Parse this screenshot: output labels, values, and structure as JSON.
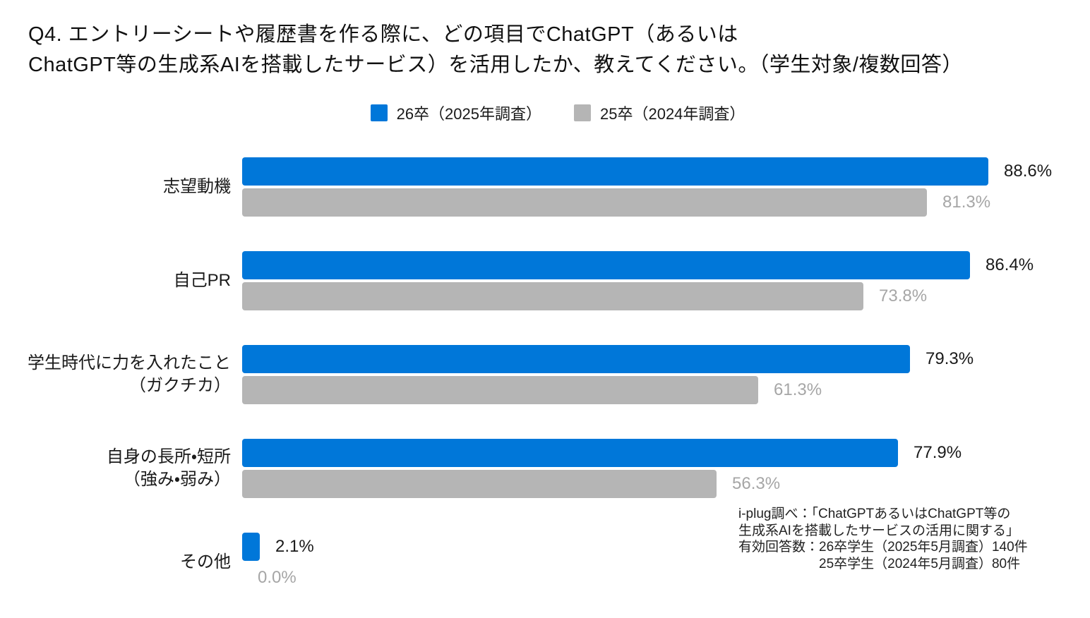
{
  "title": {
    "line1": "Q4. エントリーシートや履歴書を作る際に、どの項目でChatGPT（あるいは",
    "line2": "ChatGPT等の生成系AIを搭載したサービス）を活用したか、教えてください。（学生対象/複数回答）"
  },
  "legend": {
    "items": [
      {
        "label": "26卒（2025年調査）",
        "color": "#0077d9"
      },
      {
        "label": "25卒（2024年調査）",
        "color": "#b5b5b5"
      }
    ]
  },
  "chart_data": {
    "type": "bar",
    "orientation": "horizontal",
    "title": "Q4. エントリーシートや履歴書を作る際に、どの項目でChatGPT（あるいはChatGPT等の生成系AIを搭載したサービス）を活用したか、教えてください。（学生対象/複数回答）",
    "categories": [
      [
        "志望動機"
      ],
      [
        "自己PR"
      ],
      [
        "学生時代に力を入れたこと",
        "（ガクチカ）"
      ],
      [
        "自身の長所・短所",
        "（強み・弱み）"
      ],
      [
        "その他"
      ]
    ],
    "series": [
      {
        "name": "26卒（2025年調査）",
        "color": "#0077d9",
        "value_color": "#1a1a1a",
        "values": [
          88.6,
          86.4,
          79.3,
          77.9,
          2.1
        ]
      },
      {
        "name": "25卒（2024年調査）",
        "color": "#b5b5b5",
        "value_color": "#a6a6a6",
        "values": [
          81.3,
          73.8,
          61.3,
          56.3,
          0.0
        ]
      }
    ],
    "value_suffix": "%",
    "xlim": [
      0,
      100
    ],
    "grid": false,
    "legend_position": "top-center"
  },
  "footnote": {
    "lines": [
      {
        "text": "i-plug調べ：「ChatGPTあるいはChatGPT等の",
        "indent": false
      },
      {
        "text": "生成系AIを搭載したサービスの活用に関する」",
        "indent": false
      },
      {
        "text": "有効回答数：26卒学生（2025年5月調査）140件",
        "indent": false
      },
      {
        "text": "25卒学生（2024年5月調査）80件",
        "indent": true
      }
    ]
  }
}
